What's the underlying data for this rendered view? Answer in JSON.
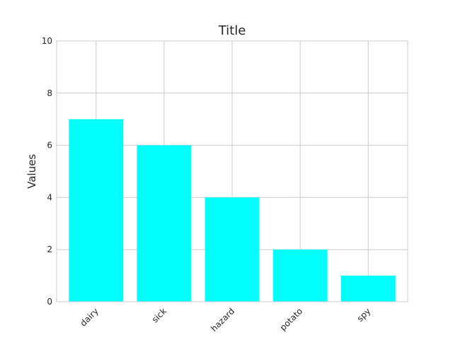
{
  "chart_data": {
    "type": "bar",
    "title": "Title",
    "xlabel": "",
    "ylabel": "Values",
    "categories": [
      "dairy",
      "sick",
      "hazard",
      "potato",
      "spy"
    ],
    "values": [
      7,
      6,
      4,
      2,
      1
    ],
    "ylim": [
      0,
      10
    ],
    "yticks": [
      0,
      2,
      4,
      6,
      8,
      10
    ],
    "grid": true,
    "colors": {
      "bar": "#00FFFF",
      "grid": "#CCCCCC",
      "axes_edge": "#CCCCCC",
      "background": "#FFFFFF"
    },
    "xtick_rotation_deg": 45
  }
}
